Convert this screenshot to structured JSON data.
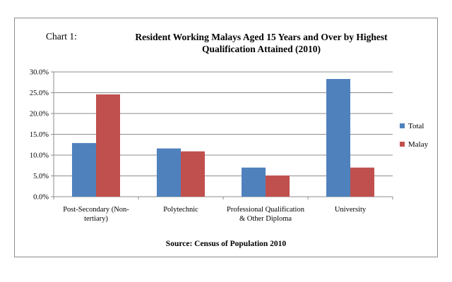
{
  "chart_data": {
    "type": "bar",
    "title_prefix": "Chart 1:",
    "title": "Resident Working Malays Aged 15 Years and Over by Highest Qualification Attained (2010)",
    "title_lines": [
      "Resident Working Malays Aged 15 Years and Over by Highest",
      "Qualification Attained (2010)"
    ],
    "categories": [
      [
        "Post-Secondary (Non-",
        "tertiary)"
      ],
      [
        "Polytechnic"
      ],
      [
        "Professional Qualification",
        "& Other Diploma"
      ],
      [
        "University"
      ]
    ],
    "series": [
      {
        "name": "Total",
        "color": "#4f81bd",
        "values": [
          12.9,
          11.6,
          7.0,
          28.3
        ]
      },
      {
        "name": "Malay",
        "color": "#c0504d",
        "values": [
          24.6,
          10.9,
          5.1,
          7.0
        ]
      }
    ],
    "ylim": [
      0,
      30
    ],
    "yticks": [
      "0.0%",
      "5.0%",
      "10.0%",
      "15.0%",
      "20.0%",
      "25.0%",
      "30.0%"
    ],
    "grid": true,
    "legend": "right",
    "source": "Source: Census of Population 2010"
  }
}
